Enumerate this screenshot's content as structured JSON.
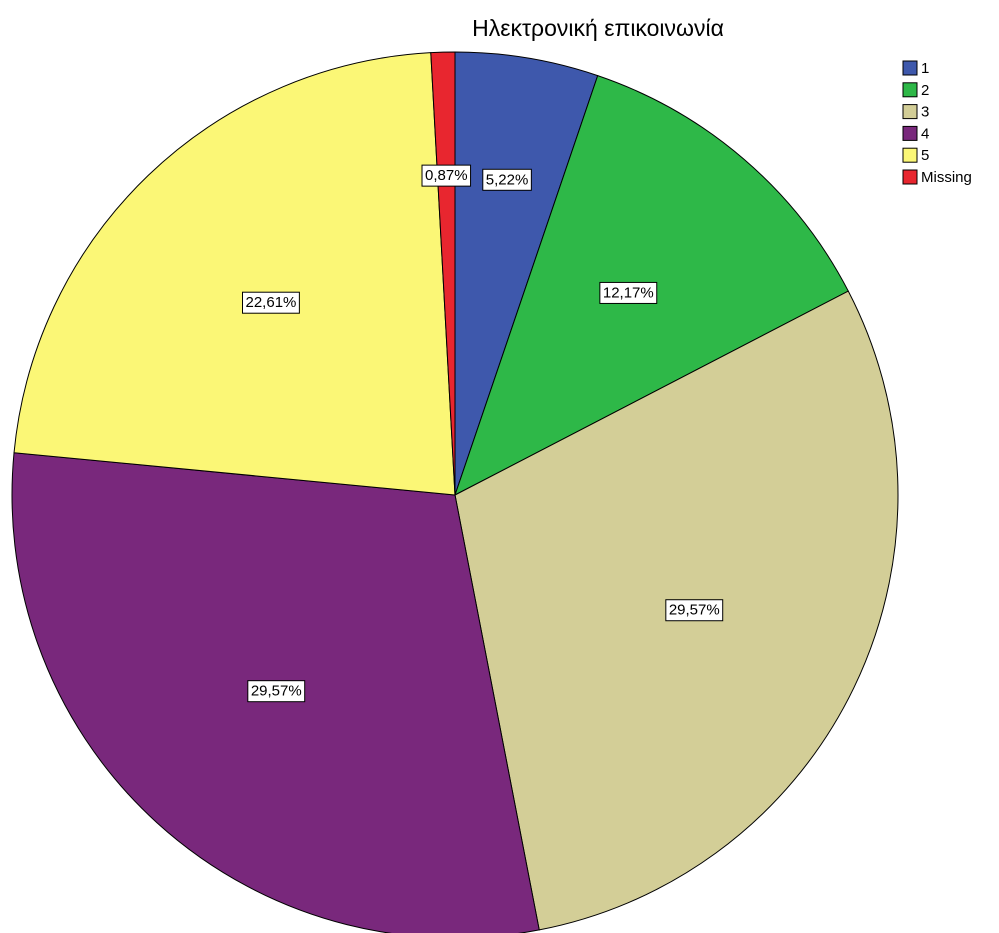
{
  "chart_data": {
    "type": "pie",
    "title": "Ηλεκτρονική επικοινωνία",
    "categories": [
      "1",
      "2",
      "3",
      "4",
      "5",
      "Missing"
    ],
    "values": [
      5.22,
      12.17,
      29.57,
      29.57,
      22.61,
      0.87
    ],
    "value_labels": [
      "5,22%",
      "12,17%",
      "29,57%",
      "29,57%",
      "22,61%",
      "0,87%"
    ],
    "colors": [
      "#3e58ac",
      "#2eb848",
      "#d3ce97",
      "#79287c",
      "#fbf776",
      "#e8262f"
    ]
  }
}
